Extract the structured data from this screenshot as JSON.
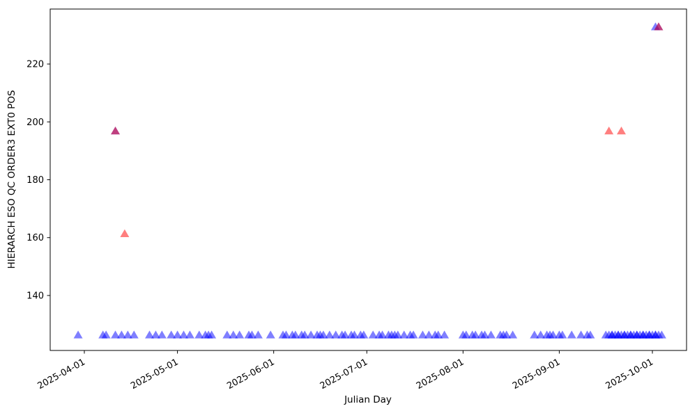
{
  "chart_data": {
    "type": "scatter",
    "marker": "triangle-up",
    "title": "",
    "xlabel": "Julian Day",
    "ylabel": "HIERARCH ESO QC ORDER3 EXT0 POS",
    "grid": false,
    "legend": "none",
    "x_axis": {
      "type": "date",
      "range": [
        "2025-03-21",
        "2025-10-12"
      ],
      "tick_labels": [
        "2025-04-01",
        "2025-05-01",
        "2025-06-01",
        "2025-07-01",
        "2025-08-01",
        "2025-09-01",
        "2025-10-01"
      ],
      "tick_rotation_deg": -29
    },
    "y_axis": {
      "range": [
        121,
        239
      ],
      "ticks": [
        140,
        160,
        180,
        200,
        220
      ]
    },
    "colors": {
      "series_blue": "#0000ff",
      "series_red": "#ff0000",
      "spine": "#000000"
    },
    "series": [
      {
        "name": "pos-nominal-blue",
        "color": "#0000ff",
        "opacity": 0.5,
        "points": [
          [
            "2025-03-30",
            126.5
          ],
          [
            "2025-04-07",
            126.5
          ],
          [
            "2025-04-08",
            126.5
          ],
          [
            "2025-04-11",
            126.5
          ],
          [
            "2025-04-13",
            126.5
          ],
          [
            "2025-04-15",
            126.5
          ],
          [
            "2025-04-17",
            126.5
          ],
          [
            "2025-04-22",
            126.5
          ],
          [
            "2025-04-24",
            126.5
          ],
          [
            "2025-04-26",
            126.5
          ],
          [
            "2025-04-29",
            126.5
          ],
          [
            "2025-05-01",
            126.5
          ],
          [
            "2025-05-03",
            126.5
          ],
          [
            "2025-05-05",
            126.5
          ],
          [
            "2025-05-08",
            126.5
          ],
          [
            "2025-05-10",
            126.5
          ],
          [
            "2025-05-11",
            126.5
          ],
          [
            "2025-05-12",
            126.5
          ],
          [
            "2025-05-17",
            126.5
          ],
          [
            "2025-05-19",
            126.5
          ],
          [
            "2025-05-21",
            126.5
          ],
          [
            "2025-05-24",
            126.5
          ],
          [
            "2025-05-25",
            126.5
          ],
          [
            "2025-05-27",
            126.5
          ],
          [
            "2025-05-31",
            126.5
          ],
          [
            "2025-06-04",
            126.5
          ],
          [
            "2025-06-05",
            126.5
          ],
          [
            "2025-06-07",
            126.5
          ],
          [
            "2025-06-08",
            126.5
          ],
          [
            "2025-06-10",
            126.5
          ],
          [
            "2025-06-11",
            126.5
          ],
          [
            "2025-06-13",
            126.5
          ],
          [
            "2025-06-15",
            126.5
          ],
          [
            "2025-06-16",
            126.5
          ],
          [
            "2025-06-17",
            126.5
          ],
          [
            "2025-06-19",
            126.5
          ],
          [
            "2025-06-21",
            126.5
          ],
          [
            "2025-06-23",
            126.5
          ],
          [
            "2025-06-24",
            126.5
          ],
          [
            "2025-06-26",
            126.5
          ],
          [
            "2025-06-27",
            126.5
          ],
          [
            "2025-06-29",
            126.5
          ],
          [
            "2025-06-30",
            126.5
          ],
          [
            "2025-07-03",
            126.5
          ],
          [
            "2025-07-05",
            126.5
          ],
          [
            "2025-07-06",
            126.5
          ],
          [
            "2025-07-08",
            126.5
          ],
          [
            "2025-07-09",
            126.5
          ],
          [
            "2025-07-10",
            126.5
          ],
          [
            "2025-07-11",
            126.5
          ],
          [
            "2025-07-13",
            126.5
          ],
          [
            "2025-07-15",
            126.5
          ],
          [
            "2025-07-16",
            126.5
          ],
          [
            "2025-07-19",
            126.5
          ],
          [
            "2025-07-21",
            126.5
          ],
          [
            "2025-07-23",
            126.5
          ],
          [
            "2025-07-24",
            126.5
          ],
          [
            "2025-07-26",
            126.5
          ],
          [
            "2025-08-01",
            126.5
          ],
          [
            "2025-08-02",
            126.5
          ],
          [
            "2025-08-04",
            126.5
          ],
          [
            "2025-08-05",
            126.5
          ],
          [
            "2025-08-07",
            126.5
          ],
          [
            "2025-08-08",
            126.5
          ],
          [
            "2025-08-10",
            126.5
          ],
          [
            "2025-08-13",
            126.5
          ],
          [
            "2025-08-14",
            126.5
          ],
          [
            "2025-08-15",
            126.5
          ],
          [
            "2025-08-17",
            126.5
          ],
          [
            "2025-08-24",
            126.5
          ],
          [
            "2025-08-26",
            126.5
          ],
          [
            "2025-08-28",
            126.5
          ],
          [
            "2025-08-29",
            126.5
          ],
          [
            "2025-08-30",
            126.5
          ],
          [
            "2025-09-01",
            126.5
          ],
          [
            "2025-09-02",
            126.5
          ],
          [
            "2025-09-05",
            126.5
          ],
          [
            "2025-09-08",
            126.5
          ],
          [
            "2025-09-10",
            126.5
          ],
          [
            "2025-09-11",
            126.5
          ],
          [
            "2025-09-16",
            126.5
          ],
          [
            "2025-09-17",
            126.5
          ],
          [
            "2025-09-18",
            126.5
          ],
          [
            "2025-09-18",
            126.5
          ],
          [
            "2025-09-19",
            126.5
          ],
          [
            "2025-09-20",
            126.5
          ],
          [
            "2025-09-20",
            126.5
          ],
          [
            "2025-09-21",
            126.5
          ],
          [
            "2025-09-22",
            126.5
          ],
          [
            "2025-09-22",
            126.5
          ],
          [
            "2025-09-23",
            126.5
          ],
          [
            "2025-09-24",
            126.5
          ],
          [
            "2025-09-24",
            126.5
          ],
          [
            "2025-09-25",
            126.5
          ],
          [
            "2025-09-26",
            126.5
          ],
          [
            "2025-09-26",
            126.5
          ],
          [
            "2025-09-27",
            126.5
          ],
          [
            "2025-09-28",
            126.5
          ],
          [
            "2025-09-28",
            126.5
          ],
          [
            "2025-09-29",
            126.5
          ],
          [
            "2025-09-30",
            126.5
          ],
          [
            "2025-09-30",
            126.5
          ],
          [
            "2025-10-01",
            126.5
          ],
          [
            "2025-10-02",
            126.5
          ],
          [
            "2025-10-02",
            126.5
          ],
          [
            "2025-10-03",
            126.5
          ],
          [
            "2025-10-04",
            126.5
          ],
          [
            "2025-04-11",
            197
          ],
          [
            "2025-10-02",
            233
          ],
          [
            "2025-10-03",
            233
          ]
        ]
      },
      {
        "name": "pos-outlier-red",
        "color": "#ff0000",
        "opacity": 0.5,
        "points": [
          [
            "2025-04-11",
            197
          ],
          [
            "2025-04-14",
            161.5
          ],
          [
            "2025-09-17",
            197
          ],
          [
            "2025-09-21",
            197
          ],
          [
            "2025-10-03",
            233
          ]
        ]
      }
    ]
  }
}
